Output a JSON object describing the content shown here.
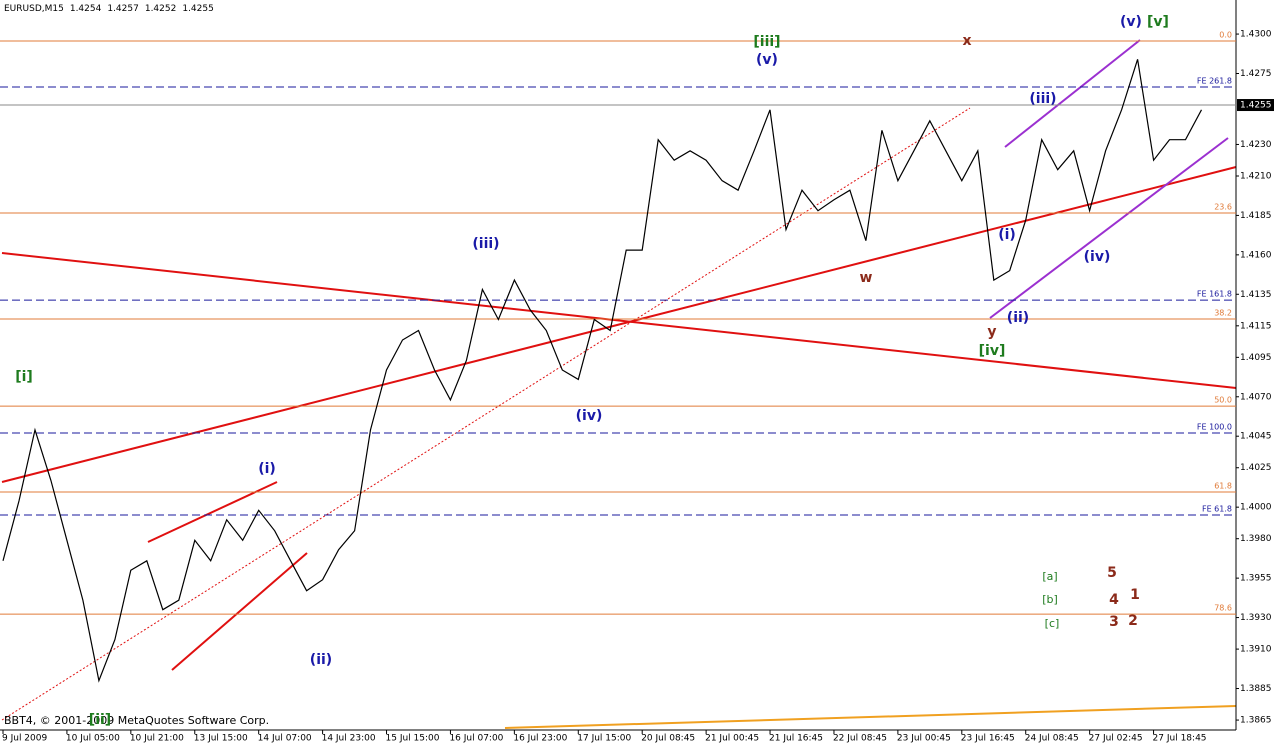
{
  "chart_data": {
    "type": "line",
    "symbol": "EURUSD,M15",
    "ohlc": [
      1.4254,
      1.4257,
      1.4252,
      1.4255
    ],
    "current_price": 1.4255,
    "footer": "BBT4, © 2001-2009 MetaQuotes Software Corp.",
    "categories": [
      "9 Jul 2009",
      null,
      null,
      null,
      "10 Jul 05:00",
      null,
      null,
      null,
      "10 Jul 21:00",
      null,
      null,
      null,
      "13 Jul 15:00",
      null,
      null,
      null,
      "14 Jul 07:00",
      null,
      null,
      null,
      "14 Jul 23:00",
      null,
      null,
      null,
      "15 Jul 15:00",
      null,
      null,
      null,
      "16 Jul 07:00",
      null,
      null,
      null,
      "16 Jul 23:00",
      null,
      null,
      null,
      "17 Jul 15:00",
      null,
      null,
      null,
      "20 Jul 08:45",
      null,
      null,
      null,
      "21 Jul 00:45",
      null,
      null,
      null,
      "21 Jul 16:45",
      null,
      null,
      null,
      "22 Jul 08:45",
      null,
      null,
      null,
      "23 Jul 00:45",
      null,
      null,
      null,
      "23 Jul 16:45",
      null,
      null,
      null,
      "24 Jul 08:45",
      null,
      null,
      null,
      "27 Jul 02:45",
      null,
      null,
      null,
      "27 Jul 18:45",
      null,
      null,
      null
    ],
    "series": [
      {
        "name": "EURUSD",
        "color": "#000000",
        "values": [
          1.3966,
          1.4004,
          1.4049,
          1.4017,
          1.3979,
          1.3941,
          1.389,
          1.3916,
          1.396,
          1.3966,
          1.3935,
          1.3941,
          1.3979,
          1.3966,
          1.3992,
          1.3979,
          1.3998,
          1.3985,
          1.3966,
          1.3947,
          1.3954,
          1.3973,
          1.3985,
          1.4049,
          1.4087,
          1.4106,
          1.4112,
          1.4087,
          1.4068,
          1.4093,
          1.4138,
          1.4119,
          1.4144,
          1.4125,
          1.4112,
          1.4087,
          1.4081,
          1.4119,
          1.4112,
          1.4163,
          1.4163,
          1.4233,
          1.422,
          1.4226,
          1.422,
          1.4207,
          1.4201,
          1.4226,
          1.4252,
          1.4176,
          1.4201,
          1.4188,
          1.4195,
          1.4201,
          1.4169,
          1.4239,
          1.4207,
          1.4226,
          1.4245,
          1.4226,
          1.4207,
          1.4226,
          1.4144,
          1.415,
          1.4182,
          1.4233,
          1.4214,
          1.4226,
          1.4188,
          1.4226,
          1.4252,
          1.4284,
          1.422,
          1.4233,
          1.4233,
          1.4252
        ]
      }
    ],
    "ylim": [
      1.38587,
      1.43216
    ],
    "yticks": [
      {
        "value": 1.43,
        "label": "1.4300"
      },
      {
        "value": 1.4275,
        "label": "1.4275"
      },
      {
        "value": 1.423,
        "label": "1.4230"
      },
      {
        "value": 1.421,
        "label": "1.4210"
      },
      {
        "value": 1.4185,
        "label": "1.4185"
      },
      {
        "value": 1.416,
        "label": "1.4160"
      },
      {
        "value": 1.4135,
        "label": "1.4135"
      },
      {
        "value": 1.4115,
        "label": "1.4115"
      },
      {
        "value": 1.4095,
        "label": "1.4095"
      },
      {
        "value": 1.407,
        "label": "1.4070"
      },
      {
        "value": 1.4045,
        "label": "1.4045"
      },
      {
        "value": 1.4025,
        "label": "1.4025"
      },
      {
        "value": 1.4,
        "label": "1.4000"
      },
      {
        "value": 1.398,
        "label": "1.3980"
      },
      {
        "value": 1.3955,
        "label": "1.3955"
      },
      {
        "value": 1.393,
        "label": "1.3930"
      },
      {
        "value": 1.391,
        "label": "1.3910"
      },
      {
        "value": 1.3885,
        "label": "1.3885"
      },
      {
        "value": 1.3865,
        "label": "1.3865"
      }
    ],
    "levels": [
      {
        "value": 1.42956,
        "label": "0.0",
        "color": "#e07b39",
        "dashed": false
      },
      {
        "value": 1.42664,
        "label": "FE 261.8",
        "color": "#1a1a9c",
        "dashed": true
      },
      {
        "value": 1.41865,
        "label": "23.6",
        "color": "#e07b39",
        "dashed": false
      },
      {
        "value": 1.41313,
        "label": "FE 161.8",
        "color": "#1a1a9c",
        "dashed": true
      },
      {
        "value": 1.41193,
        "label": "38.2",
        "color": "#e07b39",
        "dashed": false
      },
      {
        "value": 1.40641,
        "label": "50.0",
        "color": "#e07b39",
        "dashed": false
      },
      {
        "value": 1.4047,
        "label": "FE 100.0",
        "color": "#1a1a9c",
        "dashed": true
      },
      {
        "value": 1.40096,
        "label": "61.8",
        "color": "#e07b39",
        "dashed": false
      },
      {
        "value": 1.3995,
        "label": "FE 61.8",
        "color": "#1a1a9c",
        "dashed": true
      },
      {
        "value": 1.39322,
        "label": "78.6",
        "color": "#e07b39",
        "dashed": false
      }
    ],
    "annotations": [
      {
        "text": "[i]",
        "color": "#1e7b1e"
      },
      {
        "text": "[ii]",
        "color": "#1e7b1e"
      },
      {
        "text": "(i)",
        "color": "#1a1aa8"
      },
      {
        "text": "(ii)",
        "color": "#1a1aa8"
      },
      {
        "text": "(iii)",
        "color": "#1a1aa8"
      },
      {
        "text": "(iv)",
        "color": "#1a1aa8"
      },
      {
        "text": "[iii]",
        "color": "#1e7b1e"
      },
      {
        "text": "(v)",
        "color": "#1a1aa8"
      },
      {
        "text": "w",
        "color": "#8b2a1a"
      },
      {
        "text": "x",
        "color": "#8b2a1a"
      },
      {
        "text": "y",
        "color": "#8b2a1a"
      },
      {
        "text": "[iv]",
        "color": "#1e7b1e"
      },
      {
        "text": "(i)",
        "color": "#1a1aa8"
      },
      {
        "text": "(ii)",
        "color": "#1a1aa8"
      },
      {
        "text": "(iii)",
        "color": "#1a1aa8"
      },
      {
        "text": "(iv)",
        "color": "#1a1aa8"
      },
      {
        "text": "(v)",
        "color": "#1a1aa8"
      },
      {
        "text": "[v]",
        "color": "#1e7b1e"
      },
      {
        "text": "[a]",
        "color": "#1e7b1e"
      },
      {
        "text": "[b]",
        "color": "#1e7b1e"
      },
      {
        "text": "[c]",
        "color": "#1e7b1e"
      },
      {
        "text": "5",
        "color": "#8b2a1a"
      },
      {
        "text": "4",
        "color": "#8b2a1a"
      },
      {
        "text": "1",
        "color": "#8b2a1a"
      },
      {
        "text": "3",
        "color": "#8b2a1a"
      },
      {
        "text": "2",
        "color": "#8b2a1a"
      }
    ]
  }
}
